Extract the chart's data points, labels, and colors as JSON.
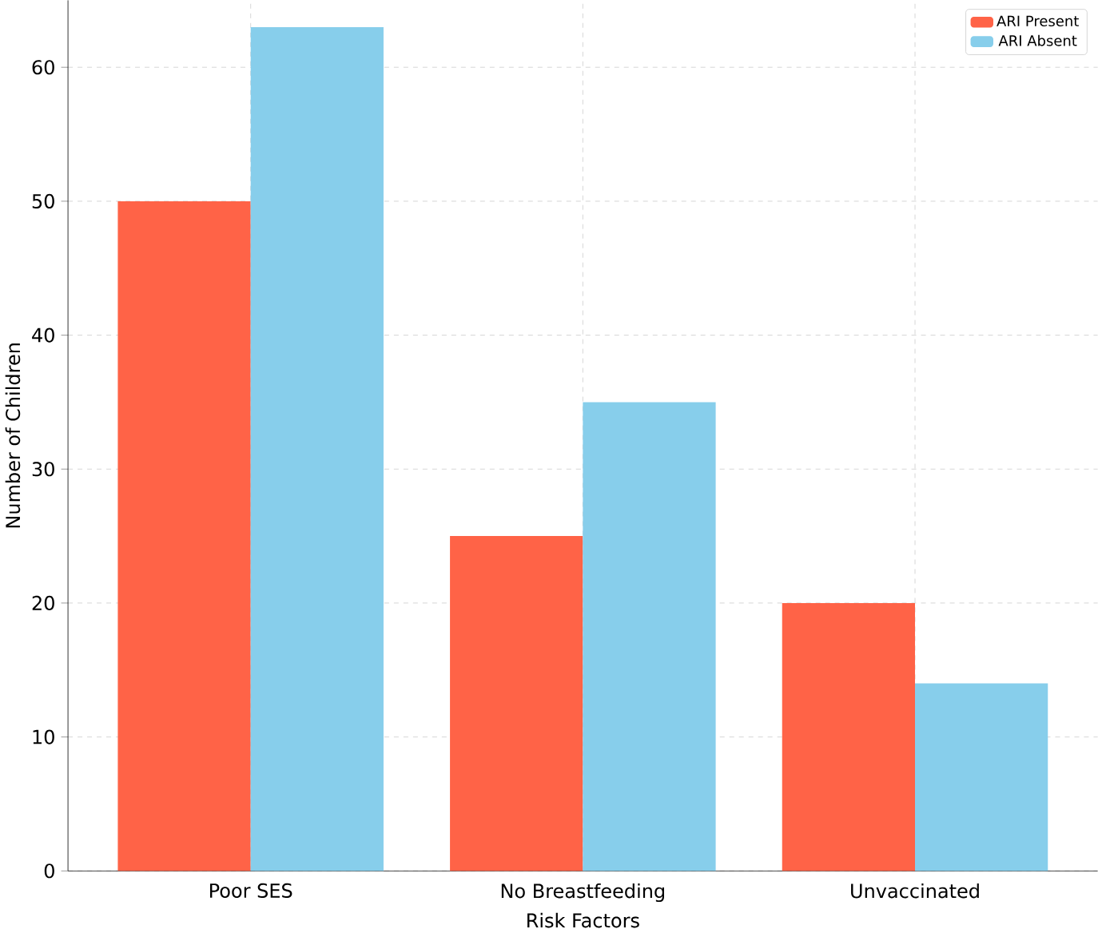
{
  "chart_data": {
    "type": "bar",
    "xlabel": "Risk Factors",
    "ylabel": "Number of Children",
    "categories": [
      "Poor SES",
      "No Breastfeeding",
      "Unvaccinated"
    ],
    "series": [
      {
        "name": "ARI Present",
        "color": "#ff6347",
        "values": [
          50,
          25,
          20
        ]
      },
      {
        "name": "ARI Absent",
        "color": "#87ceeb",
        "values": [
          63,
          35,
          14
        ]
      }
    ],
    "ylim": [
      0,
      65
    ],
    "yticks": [
      0,
      10,
      20,
      30,
      40,
      50,
      60
    ],
    "grid": true,
    "legend": "top right"
  }
}
